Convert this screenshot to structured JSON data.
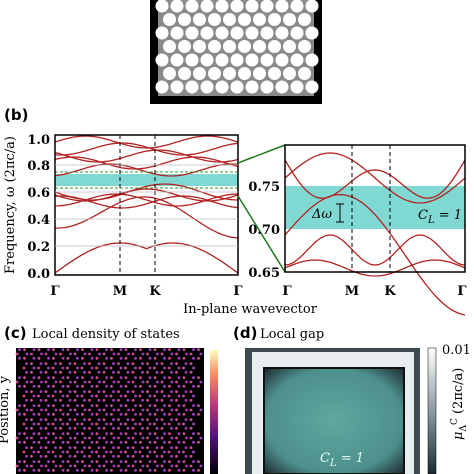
{
  "panel_b": {
    "label": "(b)",
    "left": {
      "y_title": "Frequency, ω (2πc/a)",
      "yticks": [
        "0.0",
        "0.2",
        "0.4",
        "0.6",
        "0.8",
        "1.0"
      ],
      "xticks": [
        "Γ",
        "M",
        "K",
        "Γ"
      ]
    },
    "right": {
      "yticks": [
        "0.65",
        "0.70",
        "0.75"
      ],
      "xticks": [
        "Γ",
        "M",
        "K",
        "Γ"
      ],
      "gap_label": "Δω",
      "chern": {
        "symbol": "C",
        "sub": "L",
        "rest": " = 1"
      }
    },
    "x_title": "In-plane wavevector"
  },
  "panel_c": {
    "label": "(c)",
    "title": "Local density of states",
    "y_title": "Position, y"
  },
  "panel_d": {
    "label": "(d)",
    "title": "Local gap",
    "colorbar_max": "0.01",
    "colorbar_title": {
      "symbol": "μ",
      "sub": "Λ",
      "sup": "C",
      "rest": " (2πc/a)"
    },
    "chern": {
      "symbol": "C",
      "sub": "L",
      "rest": " = 1"
    }
  }
}
